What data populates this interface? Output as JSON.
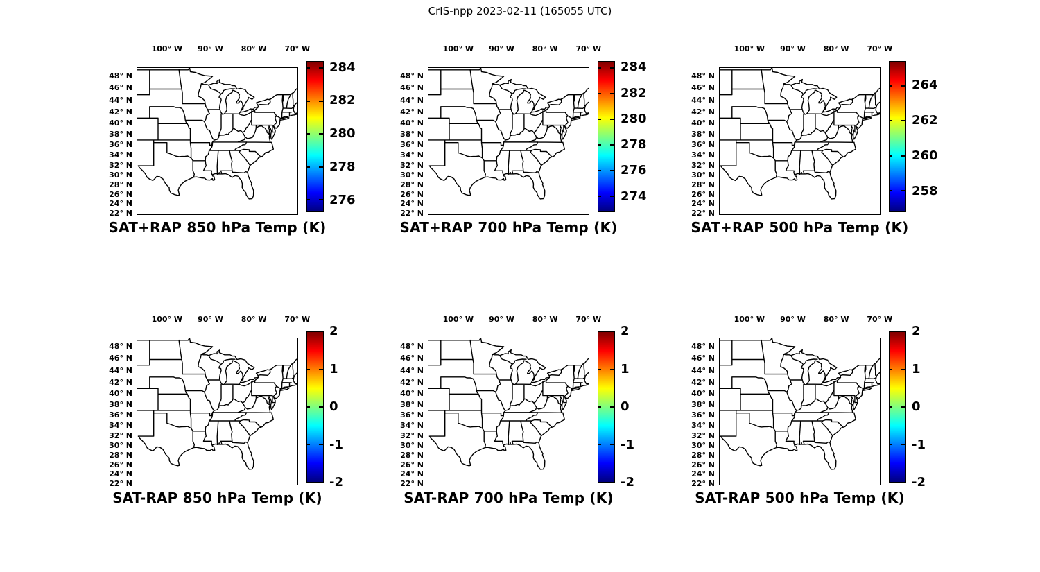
{
  "suptitle": "CrIS-npp 2023-02-11 (165055 UTC)",
  "axes": {
    "lon_ticks": [
      {
        "value": 100,
        "label": "100° W"
      },
      {
        "value": 90,
        "label": "90° W"
      },
      {
        "value": 80,
        "label": "80° W"
      },
      {
        "value": 70,
        "label": "70° W"
      }
    ],
    "lat_ticks": [
      {
        "value": 48,
        "label": "48° N"
      },
      {
        "value": 46,
        "label": "46° N"
      },
      {
        "value": 44,
        "label": "44° N"
      },
      {
        "value": 42,
        "label": "42° N"
      },
      {
        "value": 40,
        "label": "40° N"
      },
      {
        "value": 38,
        "label": "38° N"
      },
      {
        "value": 36,
        "label": "36° N"
      },
      {
        "value": 34,
        "label": "34° N"
      },
      {
        "value": 32,
        "label": "32° N"
      },
      {
        "value": 30,
        "label": "30° N"
      },
      {
        "value": 28,
        "label": "28° N"
      },
      {
        "value": 26,
        "label": "26° N"
      },
      {
        "value": 24,
        "label": "24° N"
      },
      {
        "value": 22,
        "label": "22° N"
      }
    ]
  },
  "map_extent": {
    "lon_west": 107,
    "lon_east": 69.8,
    "lat_south": 21.7,
    "lat_north": 49.4
  },
  "colormap": {
    "name": "jet",
    "stops_low_to_high": [
      "#00007F",
      "#0000FF",
      "#007FFF",
      "#00FFFF",
      "#7FFF7F",
      "#FFFF00",
      "#FF7F00",
      "#FF0000",
      "#7F0000"
    ]
  },
  "chart_data": [
    {
      "type": "map",
      "position": "top-left",
      "title": "SAT+RAP 850 hPa Temp (K)",
      "overlay": "US state outlines, no data field plotted",
      "colorbar": {
        "units": "K",
        "min": 275.3,
        "max": 284.4,
        "tick_values": [
          284,
          282,
          280,
          278,
          276
        ],
        "tick_labels": [
          "284",
          "282",
          "280",
          "278",
          "276"
        ]
      }
    },
    {
      "type": "map",
      "position": "top-middle",
      "title": "SAT+RAP 700 hPa Temp (K)",
      "overlay": "US state outlines, no data field plotted",
      "colorbar": {
        "units": "K",
        "min": 272.8,
        "max": 284.5,
        "tick_values": [
          284,
          282,
          280,
          278,
          276,
          274
        ],
        "tick_labels": [
          "284",
          "282",
          "280",
          "278",
          "276",
          "274"
        ]
      }
    },
    {
      "type": "map",
      "position": "top-right",
      "title": "SAT+RAP 500 hPa Temp (K)",
      "overlay": "US state outlines, no data field plotted",
      "colorbar": {
        "units": "K",
        "min": 256.8,
        "max": 265.4,
        "tick_values": [
          264,
          262,
          260,
          258
        ],
        "tick_labels": [
          "264",
          "262",
          "260",
          "258"
        ]
      }
    },
    {
      "type": "map",
      "position": "bottom-left",
      "title": "SAT-RAP 850 hPa Temp (K)",
      "overlay": "US state outlines, no data field plotted",
      "colorbar": {
        "units": "K",
        "min": -2,
        "max": 2,
        "tick_values": [
          2,
          1,
          0,
          -1,
          -2
        ],
        "tick_labels": [
          "2",
          "1",
          "0",
          "-1",
          "-2"
        ]
      }
    },
    {
      "type": "map",
      "position": "bottom-middle",
      "title": "SAT-RAP 700 hPa Temp (K)",
      "overlay": "US state outlines, no data field plotted",
      "colorbar": {
        "units": "K",
        "min": -2,
        "max": 2,
        "tick_values": [
          2,
          1,
          0,
          -1,
          -2
        ],
        "tick_labels": [
          "2",
          "1",
          "0",
          "-1",
          "-2"
        ]
      }
    },
    {
      "type": "map",
      "position": "bottom-right",
      "title": "SAT-RAP 500 hPa Temp (K)",
      "overlay": "US state outlines, no data field plotted",
      "colorbar": {
        "units": "K",
        "min": -2,
        "max": 2,
        "tick_values": [
          2,
          1,
          0,
          -1,
          -2
        ],
        "tick_labels": [
          "2",
          "1",
          "0",
          "-1",
          "-2"
        ]
      }
    }
  ]
}
